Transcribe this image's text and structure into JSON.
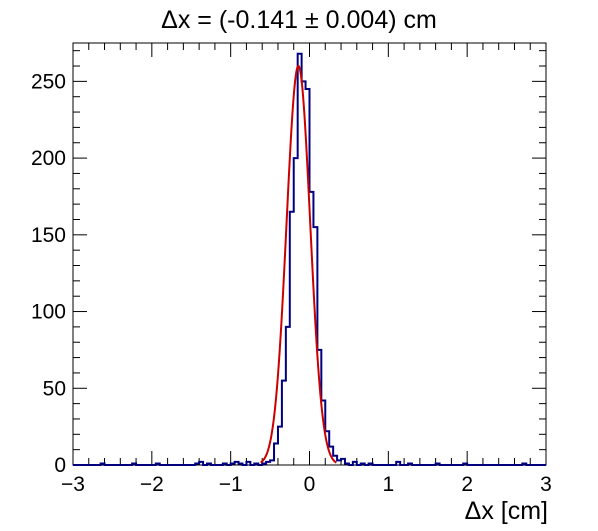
{
  "chart_data": {
    "type": "histogram",
    "title": "Δx = (-0.141 ± 0.004) cm",
    "xlabel": "Δx [cm]",
    "ylabel": "",
    "xlim": [
      -3,
      3
    ],
    "ylim": [
      0,
      275
    ],
    "x_ticks": [
      -3,
      -2,
      -1,
      0,
      1,
      2,
      3
    ],
    "x_tick_labels": [
      "−3",
      "−2",
      "−1",
      "0",
      "1",
      "2",
      "3"
    ],
    "y_ticks": [
      0,
      50,
      100,
      150,
      200,
      250
    ],
    "y_tick_labels": [
      "0",
      "50",
      "100",
      "150",
      "200",
      "250"
    ],
    "grid": false,
    "legend": "none",
    "bin_width": 0.05,
    "series": [
      {
        "kind": "histogram",
        "color": "#000080",
        "bins": [
          {
            "x": -2.66,
            "y": 1
          },
          {
            "x": -2.25,
            "y": 1
          },
          {
            "x": -1.96,
            "y": 1
          },
          {
            "x": -1.46,
            "y": 1
          },
          {
            "x": -1.38,
            "y": 2
          },
          {
            "x": -1.31,
            "y": 1
          },
          {
            "x": -1.11,
            "y": 1
          },
          {
            "x": -1.01,
            "y": 1
          },
          {
            "x": -0.96,
            "y": 2
          },
          {
            "x": -0.91,
            "y": 1
          },
          {
            "x": -0.81,
            "y": 2
          },
          {
            "x": -0.71,
            "y": 1
          },
          {
            "x": -0.61,
            "y": 1
          },
          {
            "x": -0.56,
            "y": 2
          },
          {
            "x": -0.51,
            "y": 3
          },
          {
            "x": -0.46,
            "y": 14
          },
          {
            "x": -0.41,
            "y": 25
          },
          {
            "x": -0.36,
            "y": 55
          },
          {
            "x": -0.31,
            "y": 90
          },
          {
            "x": -0.26,
            "y": 165
          },
          {
            "x": -0.21,
            "y": 200
          },
          {
            "x": -0.16,
            "y": 268
          },
          {
            "x": -0.11,
            "y": 250
          },
          {
            "x": -0.06,
            "y": 245
          },
          {
            "x": -0.01,
            "y": 178
          },
          {
            "x": 0.04,
            "y": 155
          },
          {
            "x": 0.09,
            "y": 75
          },
          {
            "x": 0.14,
            "y": 42
          },
          {
            "x": 0.19,
            "y": 22
          },
          {
            "x": 0.24,
            "y": 12
          },
          {
            "x": 0.29,
            "y": 6
          },
          {
            "x": 0.34,
            "y": 3
          },
          {
            "x": 0.39,
            "y": 4
          },
          {
            "x": 0.44,
            "y": 1
          },
          {
            "x": 0.54,
            "y": 2
          },
          {
            "x": 0.64,
            "y": 1
          },
          {
            "x": 0.74,
            "y": 1
          },
          {
            "x": 1.09,
            "y": 2
          },
          {
            "x": 1.24,
            "y": 1
          },
          {
            "x": 1.59,
            "y": 1
          },
          {
            "x": 1.94,
            "y": 1
          },
          {
            "x": 2.69,
            "y": 1
          }
        ]
      },
      {
        "kind": "gaussian_fit",
        "color": "#cc0000",
        "amplitude": 260,
        "mean": -0.141,
        "sigma": 0.15,
        "x_range": [
          -0.62,
          0.34
        ]
      }
    ]
  }
}
